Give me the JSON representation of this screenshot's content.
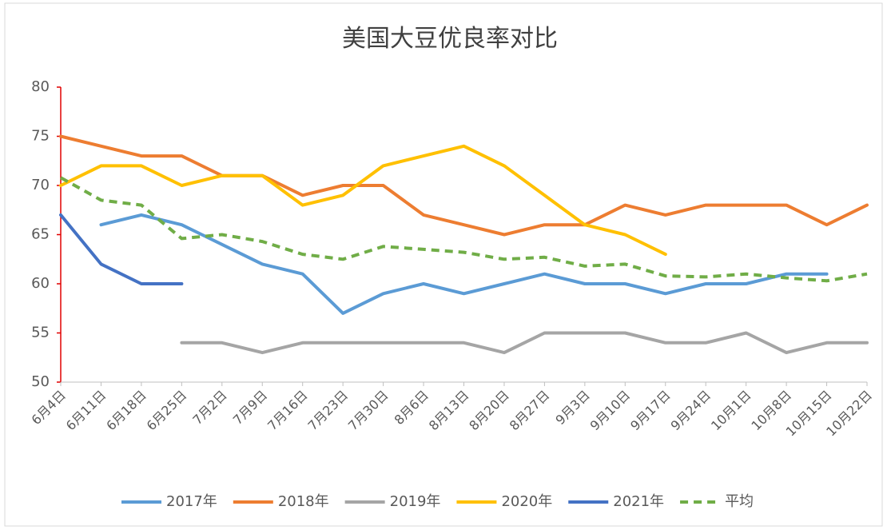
{
  "chart_data": {
    "type": "line",
    "title": "美国大豆优良率对比",
    "categories": [
      "6月4日",
      "6月11日",
      "6月18日",
      "6月25日",
      "7月2日",
      "7月9日",
      "7月16日",
      "7月23日",
      "7月30日",
      "8月6日",
      "8月13日",
      "8月20日",
      "8月27日",
      "9月3日",
      "9月10日",
      "9月17日",
      "9月24日",
      "10月1日",
      "10月8日",
      "10月15日",
      "10月22日"
    ],
    "series": [
      {
        "name": "2017年",
        "color": "#5b9bd5",
        "dashed": false,
        "values": [
          null,
          66,
          67,
          66,
          64,
          62,
          61,
          57,
          59,
          60,
          59,
          60,
          61,
          60,
          60,
          59,
          60,
          60,
          61,
          61,
          null
        ]
      },
      {
        "name": "2018年",
        "color": "#ed7d31",
        "dashed": false,
        "values": [
          75,
          74,
          73,
          73,
          71,
          71,
          69,
          70,
          70,
          67,
          66,
          65,
          66,
          66,
          68,
          67,
          68,
          68,
          68,
          66,
          68
        ]
      },
      {
        "name": "2019年",
        "color": "#a5a5a5",
        "dashed": false,
        "values": [
          null,
          null,
          null,
          54,
          54,
          53,
          54,
          54,
          54,
          54,
          54,
          53,
          55,
          55,
          55,
          54,
          54,
          55,
          53,
          54,
          54
        ]
      },
      {
        "name": "2020年",
        "color": "#ffc000",
        "dashed": false,
        "values": [
          70,
          72,
          72,
          70,
          71,
          71,
          68,
          69,
          72,
          73,
          74,
          72,
          69,
          66,
          65,
          63,
          null,
          null,
          null,
          null,
          null
        ]
      },
      {
        "name": "2021年",
        "color": "#4472c4",
        "dashed": false,
        "values": [
          67,
          62,
          60,
          60,
          null,
          null,
          null,
          null,
          null,
          null,
          null,
          null,
          null,
          null,
          null,
          null,
          null,
          null,
          null,
          null,
          null
        ]
      },
      {
        "name": "平均",
        "color": "#70ad47",
        "dashed": true,
        "values": [
          70.8,
          68.5,
          68,
          64.6,
          65,
          64.3,
          63,
          62.5,
          63.8,
          63.5,
          63.2,
          62.5,
          62.7,
          61.8,
          62,
          60.8,
          60.7,
          61,
          60.6,
          60.3,
          61
        ]
      }
    ],
    "ylim": [
      50,
      80
    ],
    "yticks": [
      50,
      55,
      60,
      65,
      70,
      75,
      80
    ],
    "grid": false,
    "legend": "bottom"
  }
}
